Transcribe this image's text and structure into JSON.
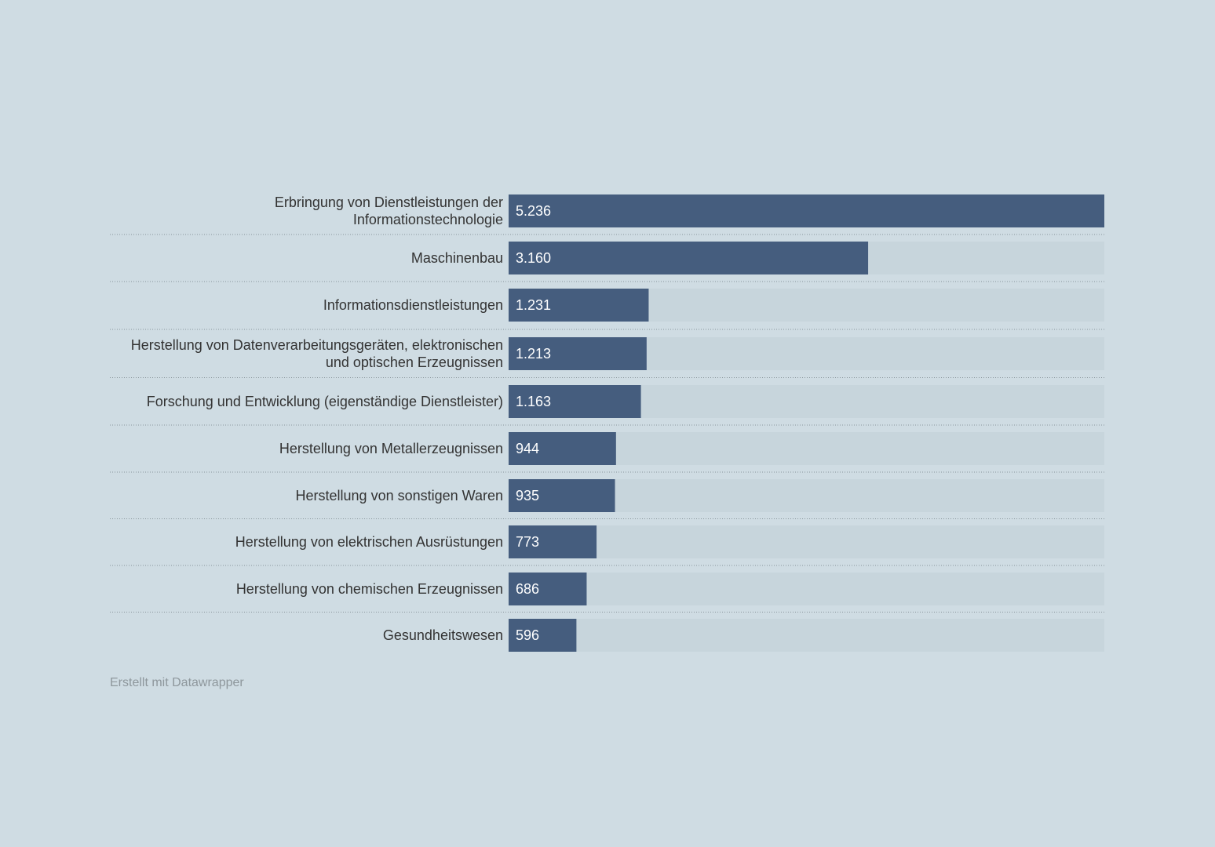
{
  "chart_data": {
    "type": "bar",
    "orientation": "horizontal",
    "categories": [
      "Erbringung von Dienstleistungen der Informationstechnologie",
      "Maschinenbau",
      "Informationsdienstleistungen",
      "Herstellung von Datenverarbeitungsgeräten, elektronischen und optischen Erzeugnissen",
      "Forschung und Entwicklung (eigenständige Dienstleister)",
      "Herstellung von Metallerzeugnissen",
      "Herstellung von sonstigen Waren",
      "Herstellung von elektrischen Ausrüstungen",
      "Herstellung von chemischen Erzeugnissen",
      "Gesundheitswesen"
    ],
    "category_lines": [
      [
        "Erbringung von Dienstleistungen der",
        "Informationstechnologie"
      ],
      [
        "Maschinenbau"
      ],
      [
        "Informationsdienstleistungen"
      ],
      [
        "Herstellung von Datenverarbeitungsgeräten, elektronischen",
        "und optischen Erzeugnissen"
      ],
      [
        "Forschung und Entwicklung (eigenständige Dienstleister)"
      ],
      [
        "Herstellung von Metallerzeugnissen"
      ],
      [
        "Herstellung von sonstigen Waren"
      ],
      [
        "Herstellung von elektrischen Ausrüstungen"
      ],
      [
        "Herstellung von chemischen Erzeugnissen"
      ],
      [
        "Gesundheitswesen"
      ]
    ],
    "values": [
      5236,
      3160,
      1231,
      1213,
      1163,
      944,
      935,
      773,
      686,
      596
    ],
    "value_labels": [
      "5.236",
      "3.160",
      "1.231",
      "1.213",
      "1.163",
      "944",
      "935",
      "773",
      "686",
      "596"
    ],
    "xlim": [
      0,
      5236
    ],
    "title": "",
    "xlabel": "",
    "ylabel": "",
    "grid": false,
    "colors": {
      "bar": "#455d7e",
      "track": "#c7d5dc",
      "separator": "#8a969c",
      "label": "#333333",
      "value_label": "#ffffff"
    }
  },
  "footer": {
    "credit": "Erstellt mit Datawrapper"
  }
}
